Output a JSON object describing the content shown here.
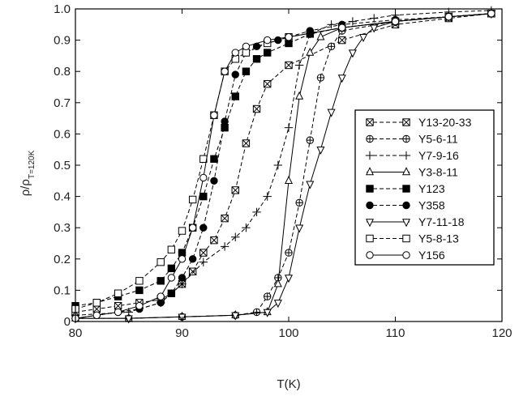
{
  "chart_data": {
    "type": "scatter",
    "xlabel": "T(K)",
    "ylabel": "ρ/ρ",
    "ylabel_sub": "T=120K",
    "xlim": [
      80,
      120
    ],
    "ylim": [
      0,
      1.0
    ],
    "xticks": [
      80,
      90,
      100,
      110,
      120
    ],
    "yticks": [
      0,
      0.1,
      0.2,
      0.3,
      0.4,
      0.5,
      0.6,
      0.7,
      0.8,
      0.9,
      1.0
    ],
    "xtick_labels": [
      "80",
      "90",
      "100",
      "110",
      "120"
    ],
    "ytick_labels": [
      "0",
      "0.1",
      "0.2",
      "0.3",
      "0.4",
      "0.5",
      "0.6",
      "0.7",
      "0.8",
      "0.9",
      "1.0"
    ],
    "grid": false,
    "legend_position": "right",
    "series": [
      {
        "name": "Y13-20-33",
        "marker": "square-x",
        "line": "dashed",
        "x": [
          80,
          82,
          84,
          86,
          88,
          89,
          90,
          91,
          92,
          93,
          94,
          95,
          96,
          97,
          98,
          100,
          105,
          110,
          115,
          119
        ],
        "y": [
          0.03,
          0.04,
          0.05,
          0.06,
          0.07,
          0.09,
          0.12,
          0.16,
          0.22,
          0.26,
          0.33,
          0.42,
          0.57,
          0.68,
          0.76,
          0.82,
          0.9,
          0.95,
          0.97,
          0.985
        ]
      },
      {
        "name": "Y5-6-11",
        "marker": "circle-plus",
        "line": "dashed",
        "x": [
          80,
          85,
          90,
          95,
          97,
          98,
          99,
          100,
          101,
          102,
          103,
          104,
          105,
          110,
          115,
          119
        ],
        "y": [
          0.01,
          0.01,
          0.015,
          0.02,
          0.03,
          0.08,
          0.14,
          0.22,
          0.38,
          0.58,
          0.78,
          0.88,
          0.93,
          0.96,
          0.975,
          0.985
        ]
      },
      {
        "name": "Y7-9-16",
        "marker": "plus",
        "line": "dashed",
        "x": [
          80,
          85,
          88,
          90,
          92,
          94,
          95,
          96,
          97,
          98,
          99,
          100,
          101,
          102,
          104,
          106,
          108,
          110,
          115,
          119
        ],
        "y": [
          0.02,
          0.03,
          0.06,
          0.12,
          0.19,
          0.24,
          0.27,
          0.3,
          0.35,
          0.4,
          0.5,
          0.62,
          0.82,
          0.92,
          0.95,
          0.96,
          0.97,
          0.98,
          0.99,
          0.995
        ]
      },
      {
        "name": "Y3-8-11",
        "marker": "triangle-up",
        "line": "solid",
        "x": [
          80,
          85,
          90,
          95,
          98,
          99,
          100,
          101,
          102,
          103,
          105,
          110,
          115,
          119
        ],
        "y": [
          0.01,
          0.01,
          0.015,
          0.02,
          0.03,
          0.12,
          0.45,
          0.72,
          0.86,
          0.91,
          0.94,
          0.96,
          0.975,
          0.985
        ]
      },
      {
        "name": "Y123",
        "marker": "square-filled",
        "line": "dashed",
        "x": [
          80,
          82,
          84,
          86,
          88,
          89,
          90,
          91,
          92,
          93,
          94,
          95,
          96,
          97,
          98,
          100,
          102,
          105,
          110,
          115,
          119
        ],
        "y": [
          0.05,
          0.06,
          0.08,
          0.1,
          0.13,
          0.17,
          0.22,
          0.3,
          0.4,
          0.52,
          0.62,
          0.72,
          0.8,
          0.84,
          0.86,
          0.89,
          0.92,
          0.94,
          0.96,
          0.975,
          0.985
        ]
      },
      {
        "name": "Y358",
        "marker": "circle-filled",
        "line": "dashed",
        "x": [
          80,
          82,
          84,
          86,
          88,
          89,
          90,
          91,
          92,
          93,
          94,
          95,
          96,
          97,
          99,
          102,
          105,
          110,
          115,
          119
        ],
        "y": [
          0.01,
          0.02,
          0.03,
          0.04,
          0.06,
          0.09,
          0.14,
          0.2,
          0.3,
          0.45,
          0.64,
          0.79,
          0.86,
          0.88,
          0.9,
          0.93,
          0.95,
          0.965,
          0.975,
          0.985
        ]
      },
      {
        "name": "Y7-11-18",
        "marker": "triangle-down",
        "line": "solid",
        "x": [
          80,
          85,
          90,
          95,
          98,
          99,
          100,
          101,
          102,
          103,
          104,
          105,
          106,
          107,
          108,
          110,
          115,
          119
        ],
        "y": [
          0.01,
          0.01,
          0.015,
          0.02,
          0.03,
          0.06,
          0.14,
          0.3,
          0.44,
          0.55,
          0.67,
          0.78,
          0.86,
          0.91,
          0.94,
          0.96,
          0.975,
          0.985
        ]
      },
      {
        "name": "Y5-8-13",
        "marker": "square-open",
        "line": "dashed",
        "x": [
          80,
          82,
          84,
          86,
          88,
          89,
          90,
          91,
          92,
          93,
          94,
          95,
          96,
          98,
          100,
          105,
          110,
          115,
          119
        ],
        "y": [
          0.04,
          0.06,
          0.09,
          0.13,
          0.19,
          0.23,
          0.29,
          0.39,
          0.52,
          0.66,
          0.8,
          0.84,
          0.86,
          0.89,
          0.91,
          0.94,
          0.96,
          0.975,
          0.985
        ]
      },
      {
        "name": "Y156",
        "marker": "circle-open",
        "line": "solid",
        "x": [
          80,
          82,
          84,
          86,
          88,
          89,
          90,
          91,
          92,
          93,
          94,
          95,
          96,
          98,
          100,
          105,
          110,
          115,
          119
        ],
        "y": [
          0.01,
          0.02,
          0.03,
          0.05,
          0.08,
          0.14,
          0.2,
          0.3,
          0.46,
          0.66,
          0.8,
          0.86,
          0.88,
          0.9,
          0.91,
          0.94,
          0.96,
          0.975,
          0.985
        ]
      }
    ]
  }
}
